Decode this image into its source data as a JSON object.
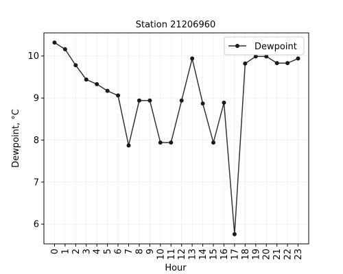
{
  "chart_data": {
    "type": "line",
    "title": "Station 21206960",
    "xlabel": "Hour",
    "ylabel": "Dewpoint, °C",
    "x": [
      0,
      1,
      2,
      3,
      4,
      5,
      6,
      7,
      8,
      9,
      10,
      11,
      12,
      13,
      14,
      15,
      16,
      17,
      18,
      19,
      20,
      21,
      22,
      23
    ],
    "series": [
      {
        "name": "Dewpoint",
        "color": "#333333",
        "marker": "circle",
        "values": [
          10.32,
          10.16,
          9.78,
          9.44,
          9.33,
          9.17,
          9.06,
          7.87,
          8.94,
          8.94,
          7.94,
          7.94,
          8.94,
          9.94,
          8.87,
          7.94,
          8.89,
          5.76,
          9.82,
          9.99,
          9.99,
          9.83,
          9.83,
          9.94
        ]
      }
    ],
    "xlim": [
      -1,
      24
    ],
    "ylim": [
      5.53,
      10.55
    ],
    "yticks": [
      6,
      7,
      8,
      9,
      10
    ],
    "xticks": [
      "0",
      "1",
      "2",
      "3",
      "4",
      "5",
      "6",
      "7",
      "8",
      "9",
      "10",
      "11",
      "12",
      "13",
      "14",
      "15",
      "16",
      "17",
      "18",
      "19",
      "20",
      "21",
      "22",
      "23"
    ],
    "grid": true,
    "legend_position": "top-right"
  }
}
